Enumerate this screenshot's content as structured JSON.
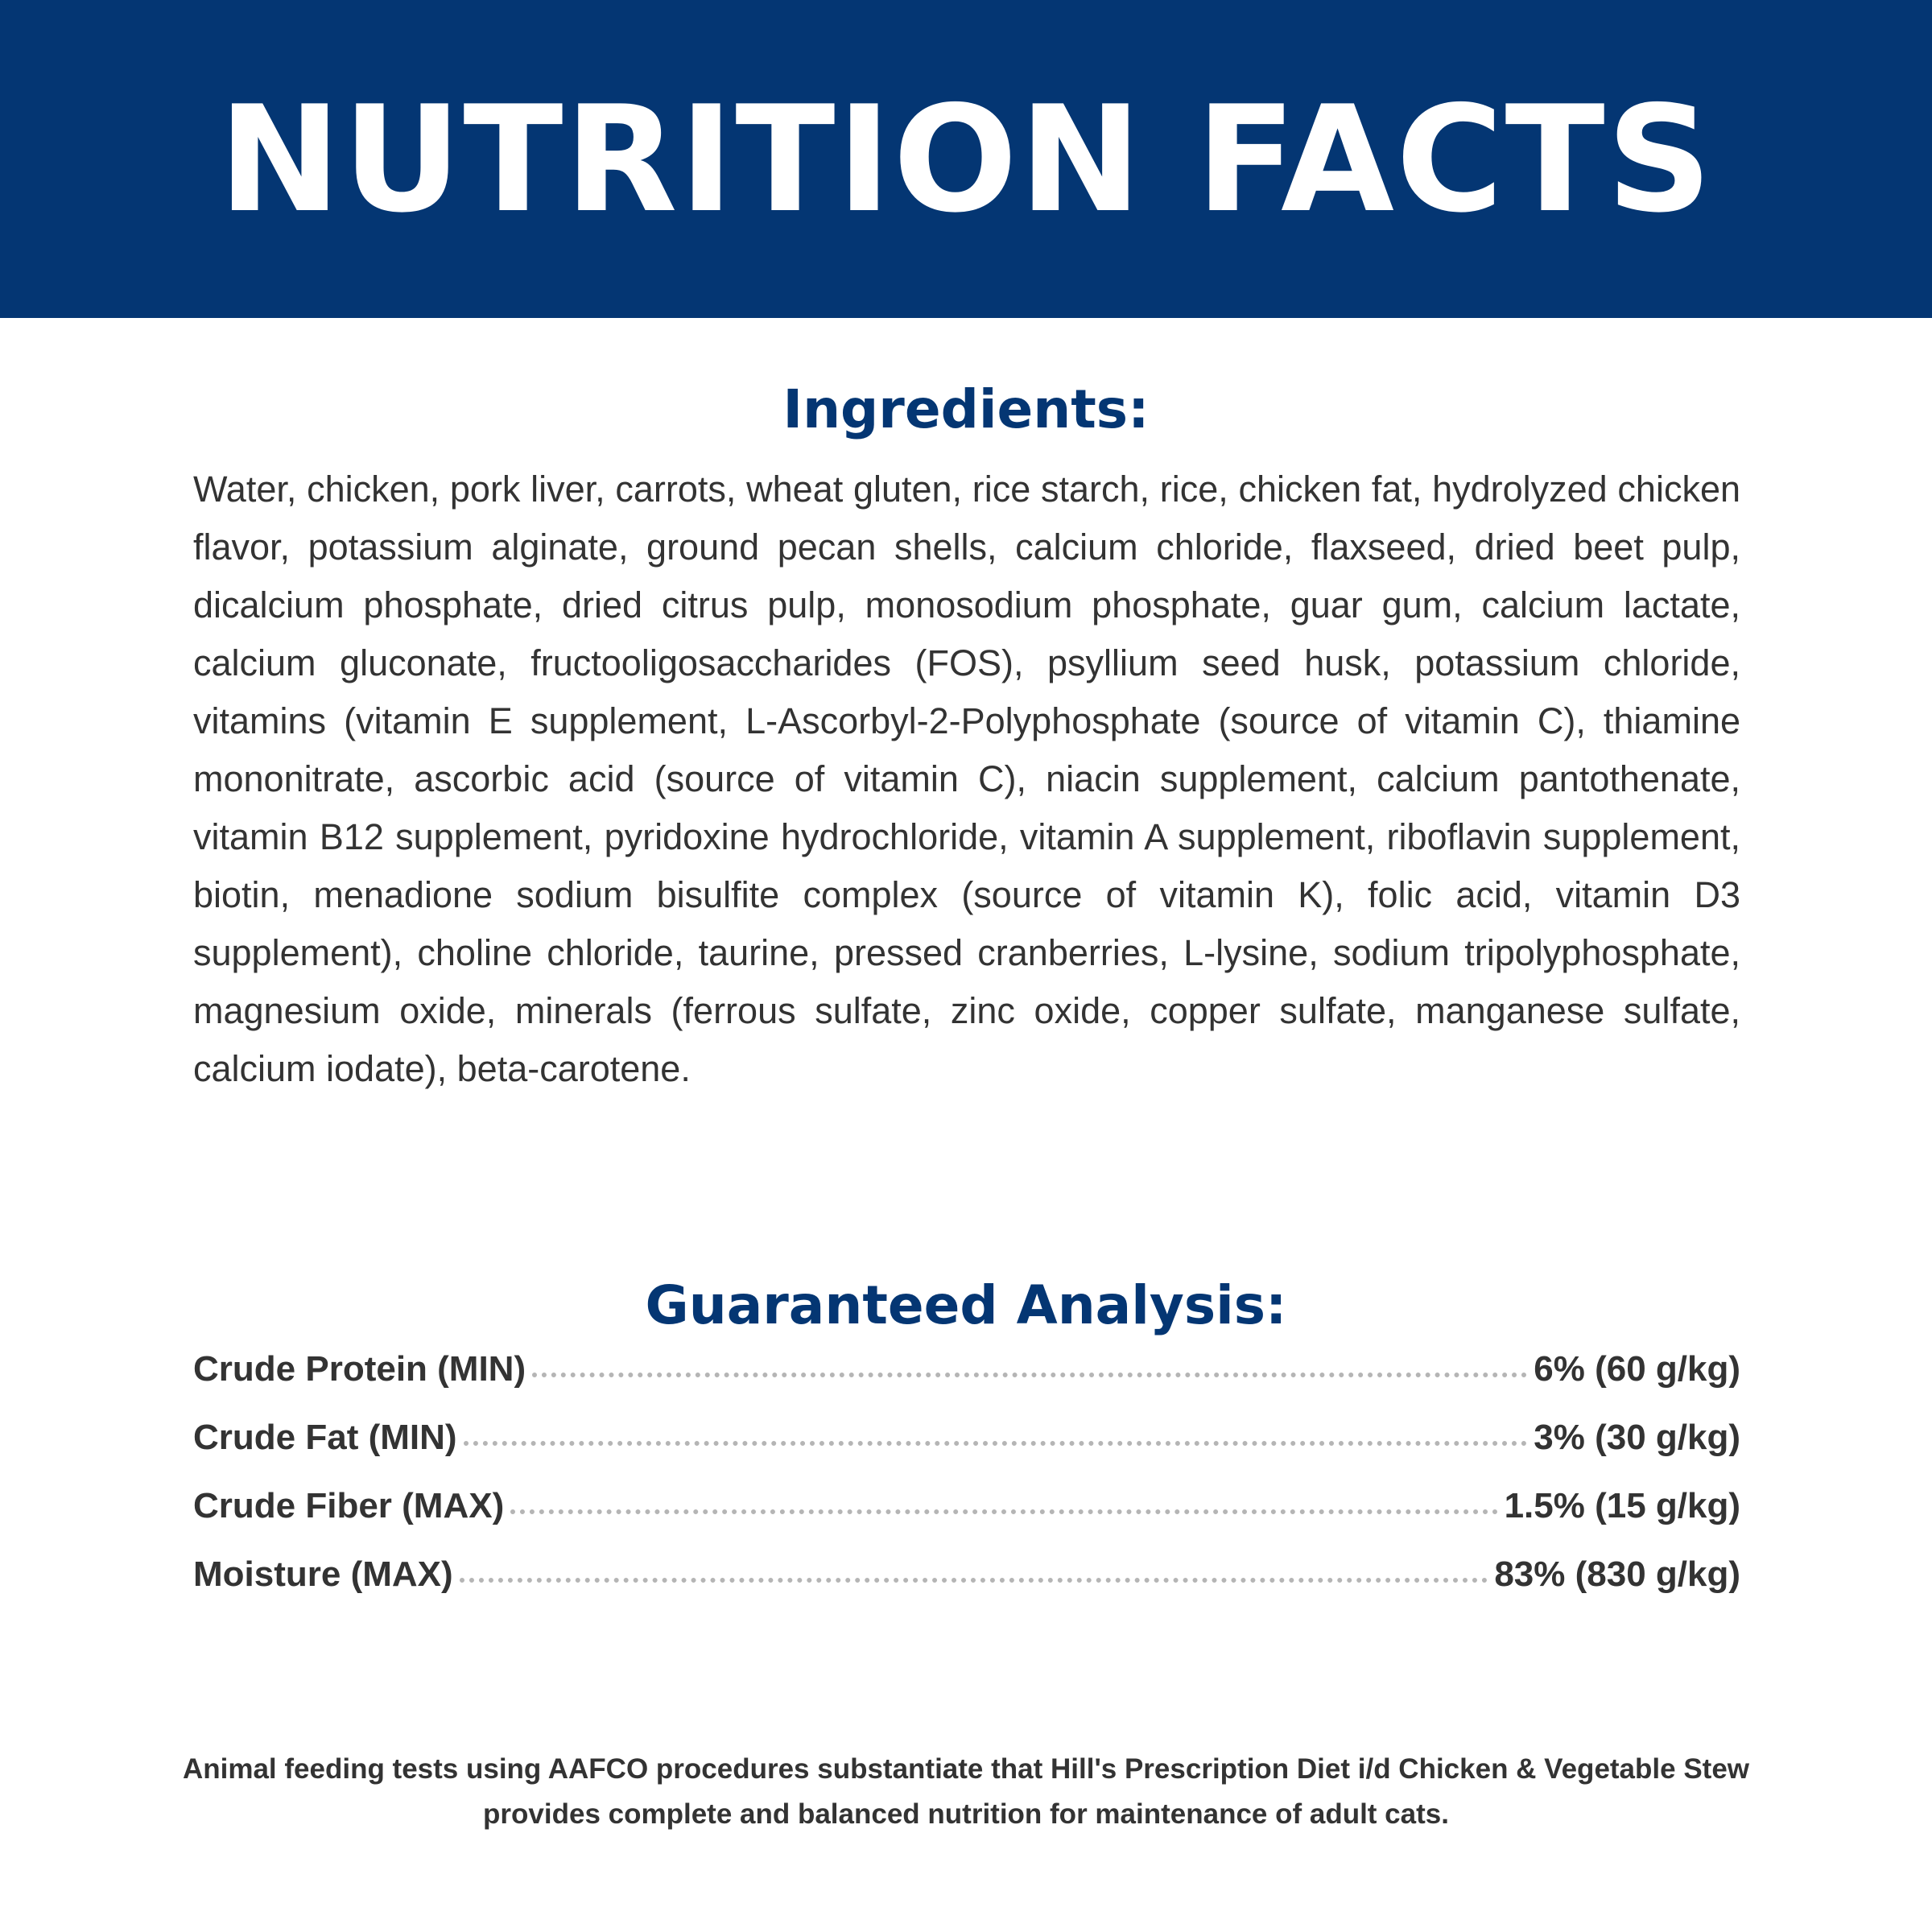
{
  "header": {
    "title": "NUTRITION FACTS",
    "background_color": "#043673"
  },
  "ingredients": {
    "heading": "Ingredients:",
    "text": "Water, chicken, pork liver, carrots, wheat gluten, rice starch, rice, chicken fat, hydrolyzed chicken flavor, potassium alginate, ground pecan shells, calcium chloride, flaxseed, dried beet pulp, dicalcium phosphate, dried citrus pulp, monosodium phosphate, guar gum, calcium lactate, calcium gluconate, fructooligosaccharides (FOS), psyllium seed husk, potassium chloride, vitamins (vitamin E supplement, L-Ascorbyl-2-Polyphosphate (source of vitamin C), thiamine mononitrate, ascorbic acid (source of vitamin C), niacin supplement, calcium pantothenate, vitamin B12 supplement, pyridoxine hydrochloride, vitamin A supplement, riboflavin supplement, biotin, menadione sodium bisulfite complex (source of vitamin K), folic acid, vitamin D3 supplement), choline chloride, taurine, pressed cranberries, L-lysine, sodium tripolyphosphate, magnesium oxide, minerals (ferrous sulfate, zinc oxide, copper sulfate, manganese sulfate, calcium iodate), beta-carotene."
  },
  "analysis": {
    "heading": "Guaranteed Analysis:",
    "rows": [
      {
        "label": "Crude Protein (MIN)",
        "value": "6% (60 g/kg)"
      },
      {
        "label": "Crude Fat (MIN)",
        "value": "3% (30 g/kg)"
      },
      {
        "label": "Crude Fiber (MAX)",
        "value": "1.5% (15 g/kg)"
      },
      {
        "label": "Moisture (MAX)",
        "value": "83% (830 g/kg)"
      }
    ]
  },
  "footer": {
    "text": "Animal feeding tests using AAFCO procedures substantiate that Hill's Prescription Diet i/d Chicken & Vegetable Stew provides complete and balanced nutrition for maintenance of adult cats."
  }
}
